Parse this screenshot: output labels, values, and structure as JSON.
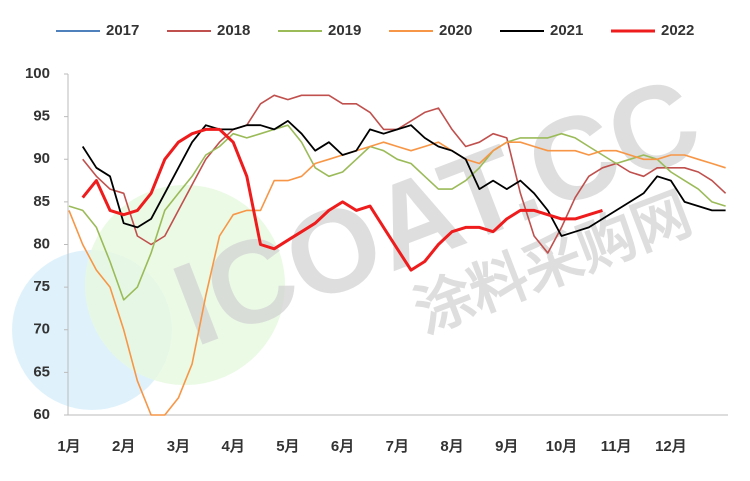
{
  "chart_data": {
    "type": "line",
    "categories": [
      "1月",
      null,
      null,
      null,
      "2月",
      null,
      null,
      null,
      "3月",
      null,
      null,
      null,
      "4月",
      null,
      null,
      null,
      "5月",
      null,
      null,
      null,
      "6月",
      null,
      null,
      null,
      "7月",
      null,
      null,
      null,
      "8月",
      null,
      null,
      null,
      "9月",
      null,
      null,
      null,
      "10月",
      null,
      null,
      null,
      "11月",
      null,
      null,
      null,
      "12月",
      null,
      null,
      null,
      null
    ],
    "series": [
      {
        "name": "2017",
        "color": "#4f81bd",
        "width": 2,
        "values": [
          null,
          null,
          null,
          null,
          null,
          null,
          null,
          null,
          null,
          null,
          null,
          null,
          null,
          null,
          null,
          null,
          null,
          null,
          null,
          null,
          null,
          null,
          null,
          null,
          null,
          null,
          null,
          null,
          null,
          null,
          null,
          null,
          null,
          null,
          null,
          null,
          null,
          null,
          null,
          null,
          null,
          null,
          null,
          null,
          null,
          null,
          null,
          null,
          null
        ]
      },
      {
        "name": "2018",
        "color": "#c0504d",
        "width": 1.6,
        "values": [
          null,
          90,
          88,
          86.5,
          86,
          81,
          80,
          81,
          84,
          87,
          90,
          92,
          93.5,
          94,
          96.5,
          97.5,
          97,
          97.5,
          97.5,
          97.5,
          96.5,
          96.5,
          95.5,
          93.5,
          93.5,
          94.5,
          95.5,
          96,
          93.5,
          91.5,
          92,
          93,
          92.5,
          86,
          81,
          79,
          82,
          85.5,
          88,
          89,
          89.5,
          88.5,
          88,
          89,
          89,
          89,
          88.5,
          87.5,
          86
        ]
      },
      {
        "name": "2019",
        "color": "#9bbb59",
        "width": 1.6,
        "values": [
          84.5,
          84,
          82,
          78,
          73.5,
          75,
          79,
          84,
          86,
          88,
          90.5,
          91.5,
          93,
          92.5,
          93,
          93.5,
          94,
          92,
          89,
          88,
          88.5,
          90,
          91.5,
          91,
          90,
          89.5,
          88,
          86.5,
          86.5,
          87.5,
          89,
          91,
          92,
          92.5,
          92.5,
          92.5,
          93,
          92.5,
          91.5,
          90.5,
          89.5,
          90,
          90.5,
          90,
          88.5,
          87.5,
          86.5,
          85,
          84.5
        ]
      },
      {
        "name": "2020",
        "color": "#f79646",
        "width": 1.6,
        "values": [
          84,
          80,
          77,
          75,
          70,
          64,
          60,
          60,
          62,
          66,
          74,
          81,
          83.5,
          84,
          84,
          87.5,
          87.5,
          88,
          89.5,
          90,
          90.5,
          91,
          91.5,
          92,
          91.5,
          91,
          91.5,
          92,
          91,
          90,
          89.5,
          91,
          92,
          92,
          91.5,
          91,
          91,
          91,
          90.5,
          91,
          91,
          90.5,
          90,
          90,
          90.5,
          90.5,
          90,
          89.5,
          89
        ]
      },
      {
        "name": "2021",
        "color": "#000000",
        "width": 1.8,
        "values": [
          null,
          91.5,
          89,
          88,
          82.5,
          82,
          83,
          86,
          89,
          92,
          94,
          93.5,
          93.5,
          94,
          94,
          93.5,
          94.5,
          93,
          91,
          92,
          90.5,
          91,
          93.5,
          93,
          93.5,
          94,
          92.5,
          91.5,
          91,
          90,
          86.5,
          87.5,
          86.5,
          87.5,
          86,
          84,
          81,
          81.5,
          82,
          83,
          84,
          85,
          86,
          88,
          87.5,
          85,
          84.5,
          84,
          84
        ]
      },
      {
        "name": "2022",
        "color": "#ee1c1c",
        "width": 3,
        "values": [
          null,
          85.5,
          87.5,
          84,
          83.5,
          84,
          86,
          90,
          92,
          93,
          93.5,
          93.5,
          92,
          88,
          80,
          79.5,
          80.5,
          81.5,
          82.5,
          84,
          85,
          84,
          84.5,
          82,
          79.5,
          77,
          78,
          80,
          81.5,
          82,
          82,
          81.5,
          83,
          84,
          84,
          83.5,
          83,
          83,
          83.5,
          84,
          null,
          null,
          null,
          null,
          null,
          null,
          null,
          null,
          null
        ]
      }
    ],
    "ylim": [
      60,
      100
    ],
    "yticks": [
      60,
      65,
      70,
      75,
      80,
      85,
      90,
      95,
      100
    ],
    "grid": false,
    "legend": "top"
  },
  "watermark": {
    "logo": "ICOAT.CC",
    "name": "涂料采购网"
  }
}
